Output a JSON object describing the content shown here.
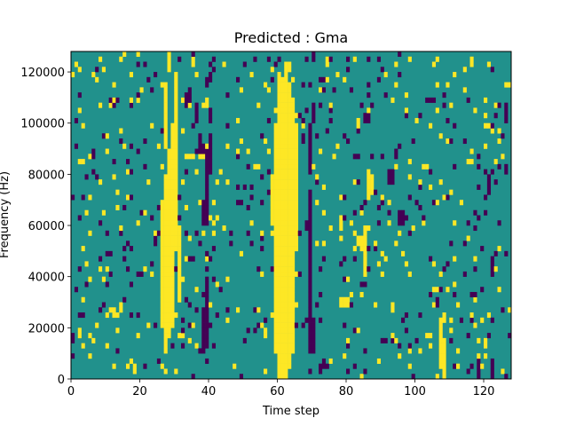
{
  "chart_data": {
    "type": "heatmap",
    "title": "Predicted : Gma",
    "xlabel": "Time step",
    "ylabel": "Frequency (Hz)",
    "xlim": [
      0,
      128
    ],
    "ylim": [
      0,
      128000
    ],
    "xticks": [
      0,
      20,
      40,
      60,
      80,
      100,
      120
    ],
    "yticks": [
      0,
      20000,
      40000,
      60000,
      80000,
      100000,
      120000
    ],
    "grid": false,
    "n_time_steps": 128,
    "n_freq_bins": 64,
    "value_levels": [
      -1,
      0,
      1
    ],
    "colors": {
      "background": "#21918c",
      "high": "#fde725",
      "low": "#440154"
    },
    "high_runs": [
      [
        60,
        61,
        0,
        59
      ],
      [
        61,
        62,
        0,
        59
      ],
      [
        62,
        63,
        0,
        59
      ],
      [
        63,
        64,
        2,
        58
      ],
      [
        59,
        60,
        5,
        50
      ],
      [
        64,
        65,
        5,
        55
      ],
      [
        65,
        66,
        25,
        50
      ],
      [
        58,
        59,
        30,
        40
      ],
      [
        26,
        27,
        10,
        35
      ],
      [
        27,
        28,
        5,
        40
      ],
      [
        28,
        29,
        8,
        45
      ],
      [
        29,
        30,
        10,
        50
      ],
      [
        30,
        31,
        25,
        60
      ],
      [
        31,
        32,
        15,
        30
      ],
      [
        27,
        28,
        45,
        58
      ],
      [
        28,
        29,
        60,
        70
      ],
      [
        62,
        63,
        59,
        62
      ],
      [
        63,
        64,
        60,
        62
      ],
      [
        107,
        108,
        2,
        12
      ],
      [
        108,
        109,
        0,
        8
      ],
      [
        78,
        79,
        14,
        16
      ],
      [
        79,
        80,
        14,
        16
      ],
      [
        80,
        81,
        14,
        16
      ],
      [
        85,
        86,
        20,
        30
      ],
      [
        84,
        85,
        25,
        28
      ],
      [
        86,
        87,
        35,
        40
      ],
      [
        87,
        88,
        37,
        40
      ]
    ],
    "low_runs": [
      [
        69,
        70,
        5,
        37
      ],
      [
        70,
        71,
        5,
        12
      ],
      [
        69,
        70,
        40,
        50
      ],
      [
        70,
        71,
        50,
        54
      ],
      [
        38,
        39,
        5,
        14
      ],
      [
        39,
        40,
        6,
        20
      ],
      [
        38,
        39,
        30,
        35
      ],
      [
        39,
        40,
        30,
        45
      ],
      [
        40,
        41,
        40,
        47
      ],
      [
        37,
        38,
        44,
        48
      ],
      [
        36,
        37,
        50,
        53
      ],
      [
        40,
        41,
        50,
        53
      ],
      [
        39,
        40,
        57,
        59
      ],
      [
        40,
        41,
        58,
        60
      ],
      [
        33,
        34,
        53,
        56
      ],
      [
        34,
        35,
        54,
        57
      ],
      [
        70,
        71,
        62,
        64
      ],
      [
        70,
        71,
        67,
        71
      ],
      [
        71,
        72,
        66,
        72
      ],
      [
        85,
        86,
        50,
        52
      ],
      [
        86,
        87,
        50,
        52
      ],
      [
        95,
        96,
        30,
        33
      ],
      [
        96,
        97,
        30,
        33
      ],
      [
        92,
        93,
        38,
        41
      ],
      [
        93,
        94,
        38,
        41
      ],
      [
        121,
        122,
        36,
        40
      ],
      [
        122,
        123,
        20,
        24
      ],
      [
        127,
        128,
        100,
        104
      ],
      [
        126,
        127,
        50,
        54
      ],
      [
        82,
        83,
        64,
        71
      ],
      [
        118,
        119,
        0,
        4
      ],
      [
        122,
        123,
        0,
        4
      ]
    ],
    "seed": 7,
    "scatter_density": {
      "high": 0.045,
      "low": 0.045
    }
  }
}
